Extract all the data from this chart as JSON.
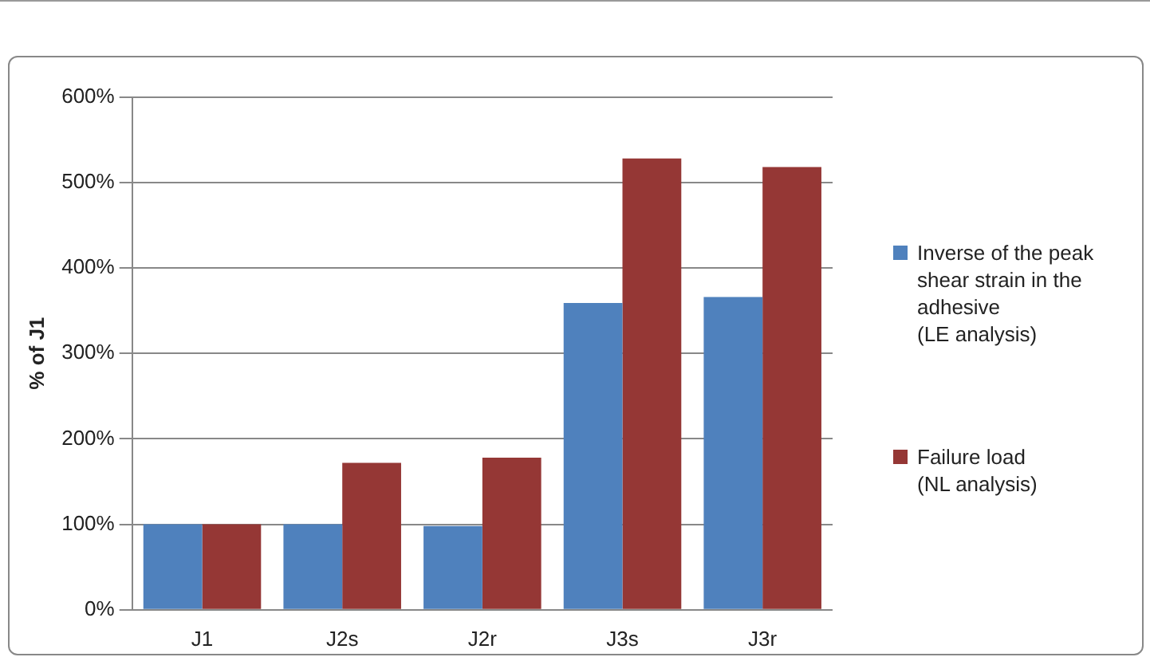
{
  "chart_data": {
    "type": "bar",
    "ylabel": "% of J1",
    "categories": [
      "J1",
      "J2s",
      "J2r",
      "J3s",
      "J3r"
    ],
    "series": [
      {
        "name": "Inverse of the peak shear strain in the adhesive\n(LE analysis)",
        "color": "#4f81bd",
        "values": [
          100,
          100,
          98,
          359,
          366
        ]
      },
      {
        "name": "Failure load\n(NL analysis)",
        "color": "#953735",
        "values": [
          100,
          172,
          178,
          528,
          518
        ]
      }
    ],
    "ylim": [
      0,
      600
    ],
    "yticks": [
      {
        "value": 0,
        "label": "0%"
      },
      {
        "value": 100,
        "label": "100%"
      },
      {
        "value": 200,
        "label": "200%"
      },
      {
        "value": 300,
        "label": "300%"
      },
      {
        "value": 400,
        "label": "400%"
      },
      {
        "value": 500,
        "label": "500%"
      },
      {
        "value": 600,
        "label": "600%"
      }
    ],
    "grid": "y",
    "legend": "right"
  }
}
